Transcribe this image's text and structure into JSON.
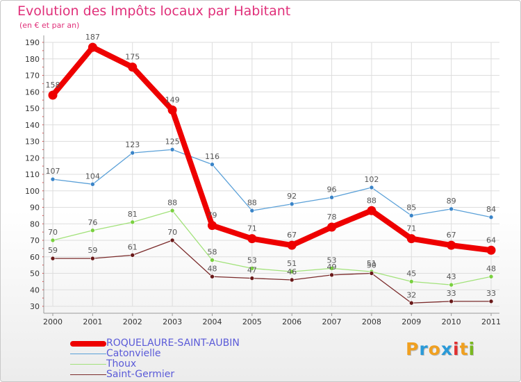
{
  "title": "Evolution des Impôts locaux par Habitant",
  "subtitle": "(en € et par an)",
  "logo": {
    "text": "Proxiti",
    "letters": [
      "P",
      "r",
      "o",
      "x",
      "i",
      "t",
      "i"
    ],
    "colors": [
      "#f0a020",
      "#2a9ad8",
      "#f0a020",
      "#2a9ad8",
      "#e03030",
      "#f0a020",
      "#7ab820"
    ]
  },
  "chart_data": {
    "type": "line",
    "title": "Evolution des Impôts locaux par Habitant",
    "ylabel": "(en € et par an)",
    "xlabel": "",
    "categories": [
      "2000",
      "2001",
      "2002",
      "2003",
      "2004",
      "2005",
      "2006",
      "2007",
      "2008",
      "2009",
      "2010",
      "2011"
    ],
    "yticks": [
      30,
      40,
      50,
      60,
      70,
      80,
      90,
      100,
      110,
      120,
      130,
      140,
      150,
      160,
      170,
      180,
      190
    ],
    "ylim": [
      30,
      190
    ],
    "grid": true,
    "series": [
      {
        "name": "ROQUELAURE-SAINT-AUBIN",
        "color": "#ee0000",
        "values": [
          158,
          187,
          175,
          149,
          79,
          71,
          67,
          78,
          88,
          71,
          67,
          64
        ],
        "marker_color": "#ee0000",
        "bold": true
      },
      {
        "name": "Catonvielle",
        "color": "#5aa0d8",
        "values": [
          107,
          104,
          123,
          125,
          116,
          88,
          92,
          96,
          102,
          85,
          89,
          84
        ],
        "marker_color": "#3a84c8",
        "bold": false
      },
      {
        "name": "Thoux",
        "color": "#a2e27a",
        "values": [
          70,
          76,
          81,
          88,
          58,
          53,
          51,
          53,
          51,
          45,
          43,
          48
        ],
        "marker_color": "#7ad040",
        "bold": false
      },
      {
        "name": "Saint-Germier",
        "color": "#7a2a2a",
        "values": [
          59,
          59,
          61,
          70,
          48,
          47,
          46,
          49,
          50,
          32,
          33,
          33
        ],
        "marker_color": "#6a1a1a",
        "bold": false
      }
    ]
  }
}
